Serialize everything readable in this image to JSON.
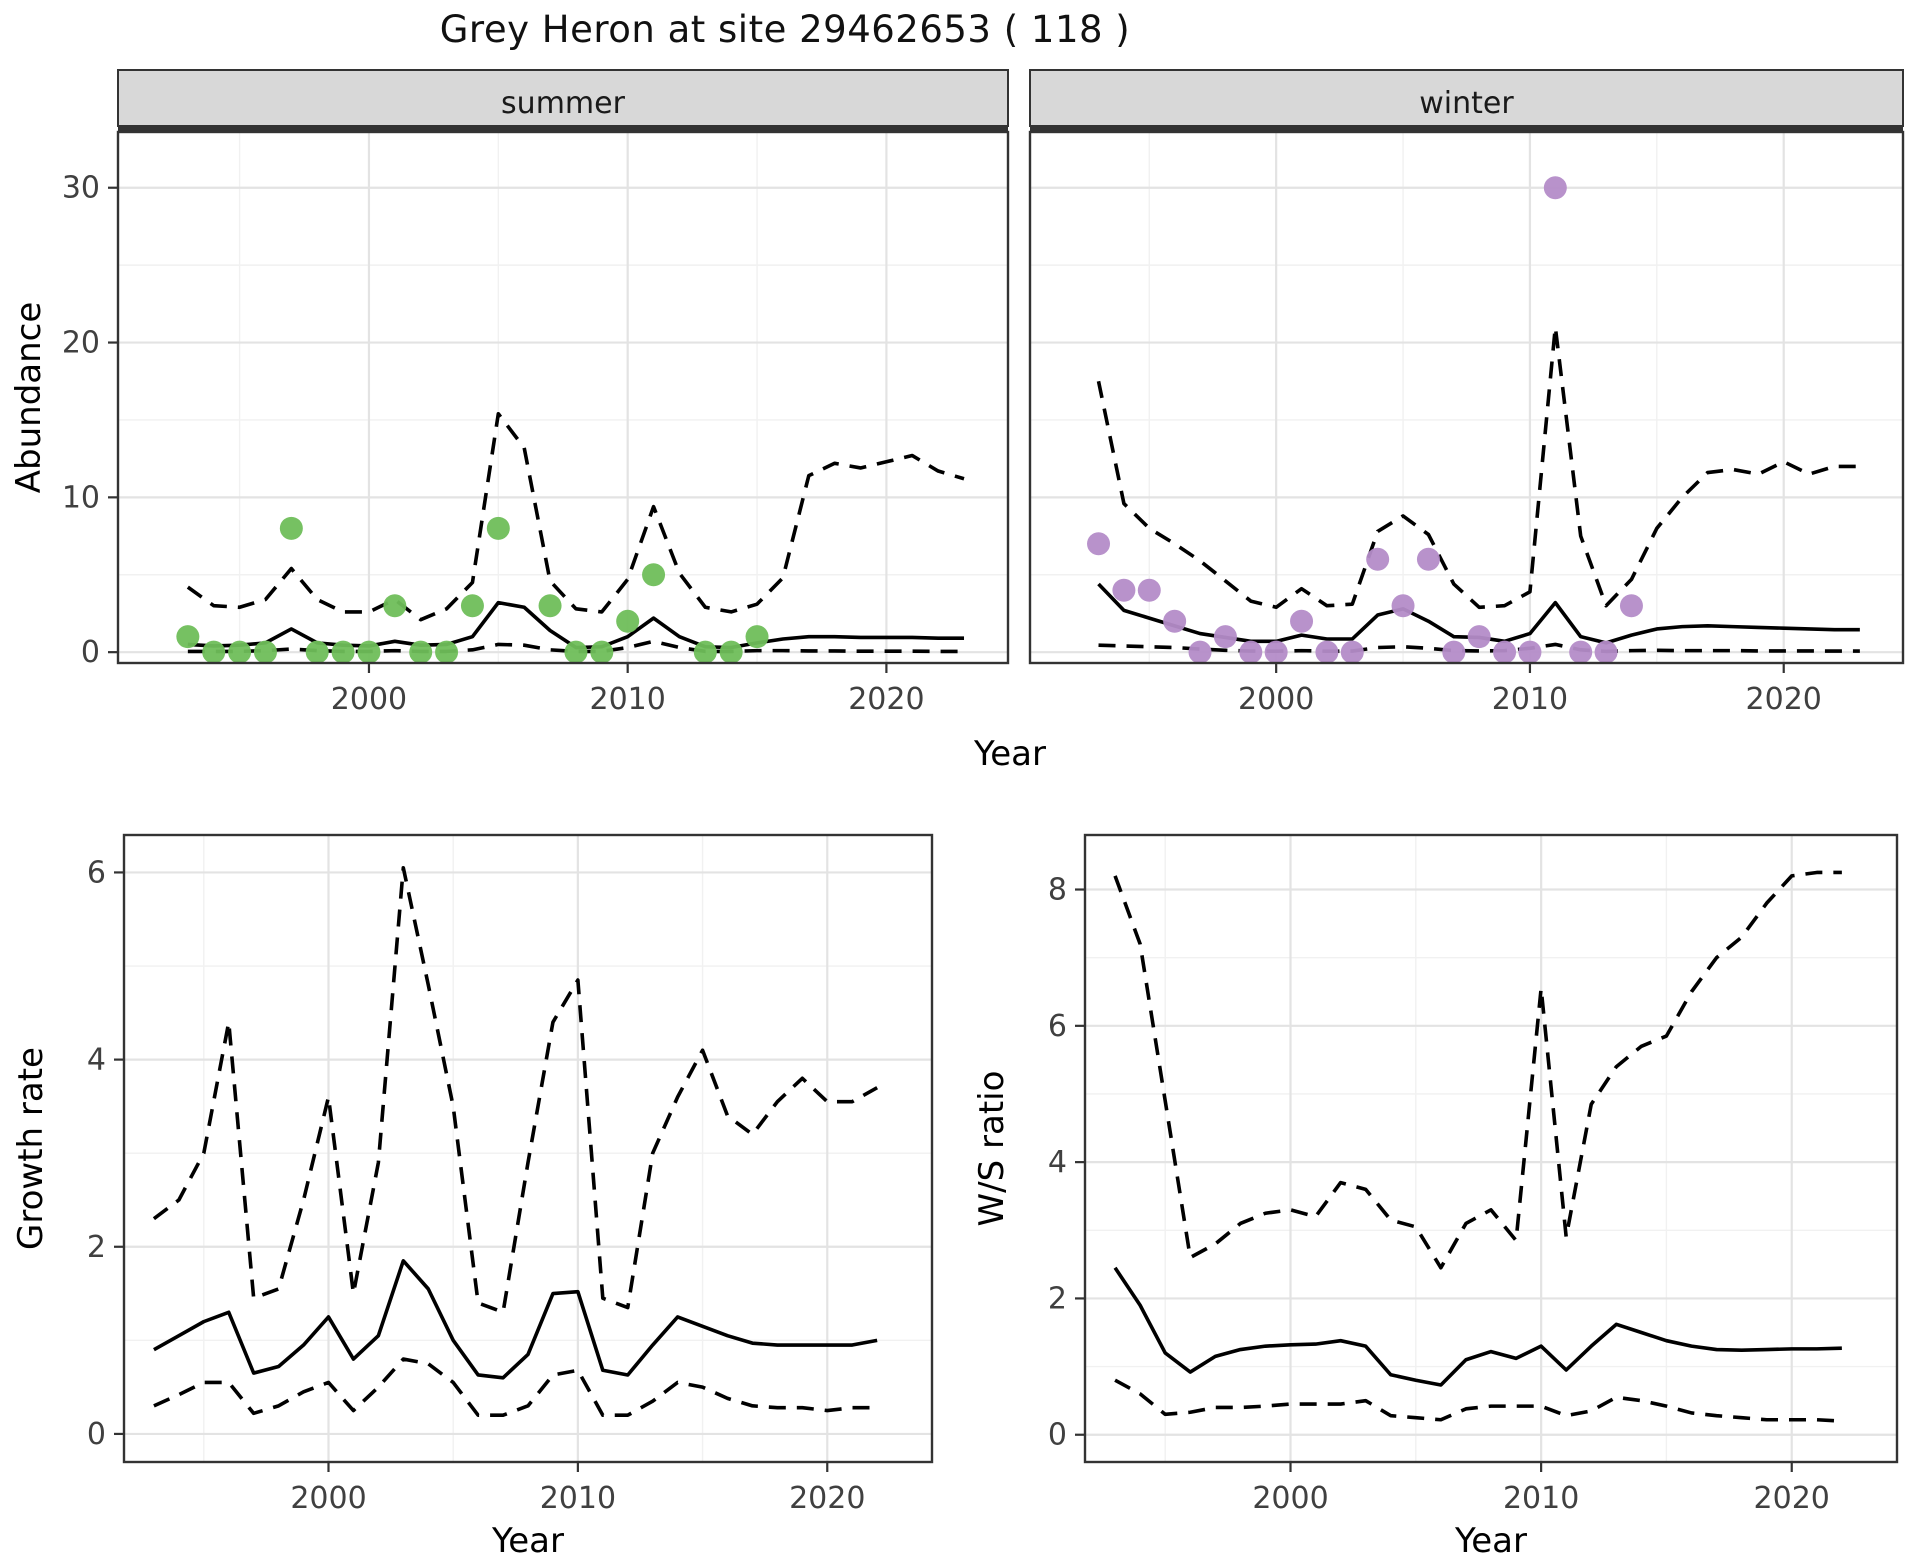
{
  "title": "Grey Heron at site 29462653 ( 118 )",
  "colors": {
    "summer_points": "#6fbe5a",
    "winter_points": "#b48cc8",
    "line": "#000000",
    "strip_bg": "#d8d8d8",
    "strip_border": "#333333",
    "panel_border": "#333333",
    "grid_major": "#e3e3e3",
    "grid_minor": "#f1f1f1",
    "tick_label": "#404040",
    "axis_title": "#000000"
  },
  "chart_data": [
    {
      "type": "line",
      "id": "abundance",
      "ylabel": "Abundance",
      "xlabel": "Year",
      "ylim": [
        -0.7,
        33.6
      ],
      "xlim": [
        1990.3,
        2024.7
      ],
      "yticks": [
        0,
        10,
        20,
        30
      ],
      "yticks_minor": [
        5,
        15,
        25
      ],
      "xticks": [
        2000,
        2010,
        2020
      ],
      "xticks_minor": [
        1995,
        2005,
        2015
      ],
      "grid": true,
      "legend_position": "none",
      "facets": [
        {
          "label": "summer",
          "point_color_key": "summer_points",
          "years": [
            1993,
            1994,
            1995,
            1996,
            1997,
            1998,
            1999,
            2000,
            2001,
            2002,
            2003,
            2004,
            2005,
            2006,
            2007,
            2008,
            2009,
            2010,
            2011,
            2012,
            2013,
            2014,
            2015,
            2016,
            2017,
            2018,
            2019,
            2020,
            2021,
            2022,
            2023
          ],
          "fit": [
            0.5,
            0.4,
            0.45,
            0.6,
            1.5,
            0.6,
            0.45,
            0.4,
            0.7,
            0.45,
            0.5,
            1.0,
            3.2,
            2.9,
            1.4,
            0.3,
            0.35,
            1.0,
            2.2,
            1.0,
            0.35,
            0.3,
            0.6,
            0.85,
            1.0,
            1.0,
            0.95,
            0.95,
            0.95,
            0.9,
            0.9
          ],
          "upper": [
            4.2,
            3.0,
            2.9,
            3.4,
            5.4,
            3.4,
            2.6,
            2.6,
            3.4,
            2.1,
            2.8,
            4.5,
            15.4,
            13.2,
            4.6,
            2.8,
            2.6,
            4.7,
            9.4,
            5.1,
            2.9,
            2.6,
            3.1,
            4.8,
            11.4,
            12.2,
            11.9,
            12.3,
            12.7,
            11.7,
            11.2
          ],
          "lower": [
            0.05,
            0.05,
            0.05,
            0.1,
            0.2,
            0.1,
            0.05,
            0.05,
            0.1,
            0.05,
            0.05,
            0.15,
            0.5,
            0.45,
            0.15,
            0.05,
            0.05,
            0.3,
            0.7,
            0.3,
            0.05,
            0.05,
            0.1,
            0.1,
            0.08,
            0.08,
            0.06,
            0.06,
            0.06,
            0.05,
            0.05
          ],
          "obs_years": [
            1993,
            1994,
            1995,
            1996,
            1997,
            1998,
            1999,
            2000,
            2001,
            2002,
            2003,
            2004,
            2005,
            2007,
            2008,
            2009,
            2010,
            2011,
            2013,
            2014,
            2015
          ],
          "obs_values": [
            1,
            0,
            0,
            0,
            8,
            0,
            0,
            0,
            3,
            0,
            0,
            3,
            8,
            3,
            0,
            0,
            2,
            5,
            0,
            0,
            1
          ]
        },
        {
          "label": "winter",
          "point_color_key": "winter_points",
          "years": [
            1993,
            1994,
            1995,
            1996,
            1997,
            1998,
            1999,
            2000,
            2001,
            2002,
            2003,
            2004,
            2005,
            2006,
            2007,
            2008,
            2009,
            2010,
            2011,
            2012,
            2013,
            2014,
            2015,
            2016,
            2017,
            2018,
            2019,
            2020,
            2021,
            2022,
            2023
          ],
          "fit": [
            4.4,
            2.7,
            2.2,
            1.7,
            1.2,
            0.95,
            0.7,
            0.7,
            1.1,
            0.85,
            0.85,
            2.4,
            2.8,
            2.0,
            1.0,
            0.95,
            0.7,
            1.2,
            3.2,
            1.0,
            0.6,
            1.1,
            1.5,
            1.65,
            1.7,
            1.65,
            1.6,
            1.55,
            1.5,
            1.45,
            1.45
          ],
          "upper": [
            17.5,
            9.6,
            8.0,
            7.0,
            5.9,
            4.6,
            3.3,
            2.9,
            4.1,
            3.0,
            3.1,
            7.8,
            8.8,
            7.6,
            4.4,
            2.9,
            3.0,
            3.9,
            21.0,
            7.5,
            3.0,
            4.7,
            8.0,
            10.0,
            11.6,
            11.8,
            11.5,
            12.3,
            11.5,
            12.0,
            12.0
          ],
          "lower": [
            0.45,
            0.4,
            0.35,
            0.3,
            0.2,
            0.12,
            0.07,
            0.06,
            0.1,
            0.06,
            0.07,
            0.3,
            0.35,
            0.25,
            0.1,
            0.08,
            0.1,
            0.25,
            0.5,
            0.15,
            0.05,
            0.1,
            0.12,
            0.1,
            0.1,
            0.1,
            0.08,
            0.08,
            0.08,
            0.07,
            0.07
          ],
          "obs_years": [
            1993,
            1994,
            1995,
            1996,
            1997,
            1998,
            1999,
            2000,
            2001,
            2002,
            2003,
            2004,
            2005,
            2006,
            2007,
            2008,
            2009,
            2010,
            2011,
            2012,
            2013,
            2014
          ],
          "obs_values": [
            7,
            4,
            4,
            2,
            0,
            1,
            0,
            0,
            2,
            0,
            0,
            6,
            3,
            6,
            0,
            1,
            0,
            0,
            30,
            0,
            0,
            3
          ]
        }
      ]
    },
    {
      "type": "line",
      "id": "growth_rate",
      "ylabel": "Growth rate",
      "xlabel": "Year",
      "ylim": [
        -0.3,
        6.4
      ],
      "xlim": [
        1991.8,
        2024.2
      ],
      "yticks": [
        0,
        2,
        4,
        6
      ],
      "yticks_minor": [
        1,
        3,
        5
      ],
      "xticks": [
        2000,
        2010,
        2020
      ],
      "xticks_minor": [
        1995,
        2005,
        2015
      ],
      "grid": true,
      "legend_position": "none",
      "years": [
        1993,
        1994,
        1995,
        1996,
        1997,
        1998,
        1999,
        2000,
        2001,
        2002,
        2003,
        2004,
        2005,
        2006,
        2007,
        2008,
        2009,
        2010,
        2011,
        2012,
        2013,
        2014,
        2015,
        2016,
        2017,
        2018,
        2019,
        2020,
        2021,
        2022
      ],
      "fit": [
        0.9,
        1.05,
        1.2,
        1.3,
        0.65,
        0.72,
        0.95,
        1.25,
        0.8,
        1.05,
        1.85,
        1.55,
        1.0,
        0.63,
        0.6,
        0.85,
        1.5,
        1.52,
        0.68,
        0.63,
        0.95,
        1.25,
        1.15,
        1.05,
        0.97,
        0.95,
        0.95,
        0.95,
        0.95,
        1.0
      ],
      "upper": [
        2.3,
        2.5,
        3.0,
        4.4,
        1.45,
        1.55,
        2.5,
        3.6,
        1.5,
        2.9,
        6.05,
        4.8,
        3.5,
        1.4,
        1.3,
        2.9,
        4.4,
        4.85,
        1.45,
        1.35,
        3.0,
        3.6,
        4.1,
        3.4,
        3.2,
        3.55,
        3.8,
        3.55,
        3.55,
        3.7
      ],
      "lower": [
        0.3,
        0.42,
        0.55,
        0.55,
        0.22,
        0.3,
        0.45,
        0.55,
        0.25,
        0.5,
        0.8,
        0.75,
        0.55,
        0.2,
        0.2,
        0.3,
        0.63,
        0.68,
        0.2,
        0.2,
        0.35,
        0.55,
        0.5,
        0.38,
        0.3,
        0.28,
        0.28,
        0.25,
        0.28,
        0.28
      ]
    },
    {
      "type": "line",
      "id": "ws_ratio",
      "ylabel": "W/S ratio",
      "xlabel": "Year",
      "ylim": [
        -0.4,
        8.8
      ],
      "xlim": [
        1991.8,
        2024.2
      ],
      "yticks": [
        0,
        2,
        4,
        6,
        8
      ],
      "yticks_minor": [
        1,
        3,
        5,
        7
      ],
      "xticks": [
        2000,
        2010,
        2020
      ],
      "xticks_minor": [
        1995,
        2005,
        2015
      ],
      "grid": true,
      "legend_position": "none",
      "years": [
        1993,
        1994,
        1995,
        1996,
        1997,
        1998,
        1999,
        2000,
        2001,
        2002,
        2003,
        2004,
        2005,
        2006,
        2007,
        2008,
        2009,
        2010,
        2011,
        2012,
        2013,
        2014,
        2015,
        2016,
        2017,
        2018,
        2019,
        2020,
        2021,
        2022
      ],
      "fit": [
        2.45,
        1.9,
        1.2,
        0.92,
        1.15,
        1.25,
        1.3,
        1.32,
        1.33,
        1.38,
        1.3,
        0.88,
        0.8,
        0.73,
        1.1,
        1.22,
        1.12,
        1.3,
        0.95,
        1.3,
        1.62,
        1.5,
        1.38,
        1.3,
        1.25,
        1.24,
        1.25,
        1.26,
        1.26,
        1.27
      ],
      "upper": [
        8.2,
        7.2,
        4.9,
        2.6,
        2.8,
        3.1,
        3.25,
        3.3,
        3.2,
        3.7,
        3.6,
        3.15,
        3.05,
        2.45,
        3.1,
        3.3,
        2.85,
        6.55,
        2.9,
        4.85,
        5.4,
        5.7,
        5.85,
        6.5,
        7.0,
        7.3,
        7.8,
        8.2,
        8.25,
        8.25
      ],
      "lower": [
        0.8,
        0.6,
        0.3,
        0.33,
        0.4,
        0.4,
        0.42,
        0.45,
        0.45,
        0.45,
        0.5,
        0.28,
        0.25,
        0.22,
        0.38,
        0.42,
        0.42,
        0.42,
        0.28,
        0.35,
        0.55,
        0.5,
        0.42,
        0.32,
        0.28,
        0.25,
        0.22,
        0.22,
        0.22,
        0.2
      ]
    }
  ]
}
